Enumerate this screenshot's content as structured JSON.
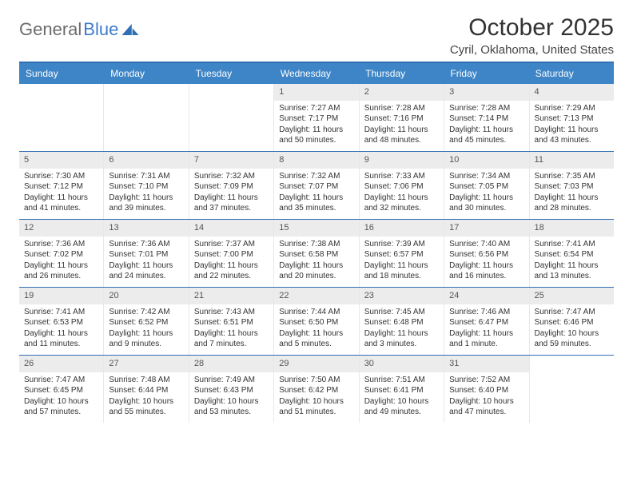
{
  "logo": {
    "part1": "General",
    "part2": "Blue"
  },
  "title": "October 2025",
  "location": "Cyril, Oklahoma, United States",
  "colors": {
    "header_bg": "#3d85c6",
    "header_text": "#ffffff",
    "border": "#2f6fb3",
    "daynum_bg": "#ececec",
    "text": "#333333"
  },
  "dayNames": [
    "Sunday",
    "Monday",
    "Tuesday",
    "Wednesday",
    "Thursday",
    "Friday",
    "Saturday"
  ],
  "weeks": [
    [
      null,
      null,
      null,
      {
        "n": "1",
        "sr": "7:27 AM",
        "ss": "7:17 PM",
        "dl": "11 hours and 50 minutes."
      },
      {
        "n": "2",
        "sr": "7:28 AM",
        "ss": "7:16 PM",
        "dl": "11 hours and 48 minutes."
      },
      {
        "n": "3",
        "sr": "7:28 AM",
        "ss": "7:14 PM",
        "dl": "11 hours and 45 minutes."
      },
      {
        "n": "4",
        "sr": "7:29 AM",
        "ss": "7:13 PM",
        "dl": "11 hours and 43 minutes."
      }
    ],
    [
      {
        "n": "5",
        "sr": "7:30 AM",
        "ss": "7:12 PM",
        "dl": "11 hours and 41 minutes."
      },
      {
        "n": "6",
        "sr": "7:31 AM",
        "ss": "7:10 PM",
        "dl": "11 hours and 39 minutes."
      },
      {
        "n": "7",
        "sr": "7:32 AM",
        "ss": "7:09 PM",
        "dl": "11 hours and 37 minutes."
      },
      {
        "n": "8",
        "sr": "7:32 AM",
        "ss": "7:07 PM",
        "dl": "11 hours and 35 minutes."
      },
      {
        "n": "9",
        "sr": "7:33 AM",
        "ss": "7:06 PM",
        "dl": "11 hours and 32 minutes."
      },
      {
        "n": "10",
        "sr": "7:34 AM",
        "ss": "7:05 PM",
        "dl": "11 hours and 30 minutes."
      },
      {
        "n": "11",
        "sr": "7:35 AM",
        "ss": "7:03 PM",
        "dl": "11 hours and 28 minutes."
      }
    ],
    [
      {
        "n": "12",
        "sr": "7:36 AM",
        "ss": "7:02 PM",
        "dl": "11 hours and 26 minutes."
      },
      {
        "n": "13",
        "sr": "7:36 AM",
        "ss": "7:01 PM",
        "dl": "11 hours and 24 minutes."
      },
      {
        "n": "14",
        "sr": "7:37 AM",
        "ss": "7:00 PM",
        "dl": "11 hours and 22 minutes."
      },
      {
        "n": "15",
        "sr": "7:38 AM",
        "ss": "6:58 PM",
        "dl": "11 hours and 20 minutes."
      },
      {
        "n": "16",
        "sr": "7:39 AM",
        "ss": "6:57 PM",
        "dl": "11 hours and 18 minutes."
      },
      {
        "n": "17",
        "sr": "7:40 AM",
        "ss": "6:56 PM",
        "dl": "11 hours and 16 minutes."
      },
      {
        "n": "18",
        "sr": "7:41 AM",
        "ss": "6:54 PM",
        "dl": "11 hours and 13 minutes."
      }
    ],
    [
      {
        "n": "19",
        "sr": "7:41 AM",
        "ss": "6:53 PM",
        "dl": "11 hours and 11 minutes."
      },
      {
        "n": "20",
        "sr": "7:42 AM",
        "ss": "6:52 PM",
        "dl": "11 hours and 9 minutes."
      },
      {
        "n": "21",
        "sr": "7:43 AM",
        "ss": "6:51 PM",
        "dl": "11 hours and 7 minutes."
      },
      {
        "n": "22",
        "sr": "7:44 AM",
        "ss": "6:50 PM",
        "dl": "11 hours and 5 minutes."
      },
      {
        "n": "23",
        "sr": "7:45 AM",
        "ss": "6:48 PM",
        "dl": "11 hours and 3 minutes."
      },
      {
        "n": "24",
        "sr": "7:46 AM",
        "ss": "6:47 PM",
        "dl": "11 hours and 1 minute."
      },
      {
        "n": "25",
        "sr": "7:47 AM",
        "ss": "6:46 PM",
        "dl": "10 hours and 59 minutes."
      }
    ],
    [
      {
        "n": "26",
        "sr": "7:47 AM",
        "ss": "6:45 PM",
        "dl": "10 hours and 57 minutes."
      },
      {
        "n": "27",
        "sr": "7:48 AM",
        "ss": "6:44 PM",
        "dl": "10 hours and 55 minutes."
      },
      {
        "n": "28",
        "sr": "7:49 AM",
        "ss": "6:43 PM",
        "dl": "10 hours and 53 minutes."
      },
      {
        "n": "29",
        "sr": "7:50 AM",
        "ss": "6:42 PM",
        "dl": "10 hours and 51 minutes."
      },
      {
        "n": "30",
        "sr": "7:51 AM",
        "ss": "6:41 PM",
        "dl": "10 hours and 49 minutes."
      },
      {
        "n": "31",
        "sr": "7:52 AM",
        "ss": "6:40 PM",
        "dl": "10 hours and 47 minutes."
      },
      null
    ]
  ],
  "labels": {
    "sunrise": "Sunrise:",
    "sunset": "Sunset:",
    "daylight": "Daylight:"
  }
}
